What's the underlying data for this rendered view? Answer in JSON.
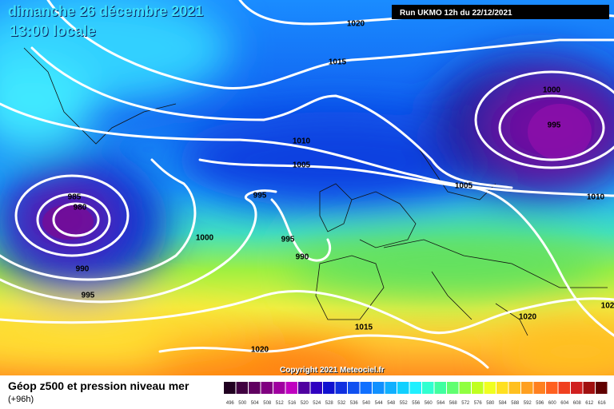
{
  "header": {
    "date": "dimanche 26 décembre 2021",
    "time": "13:00 locale",
    "run": "Run UKMO 12h du 22/12/2021"
  },
  "isobar_labels": [
    "1020",
    "1015",
    "1010",
    "1005",
    "1000",
    "995",
    "1005",
    "1010",
    "995",
    "985",
    "980",
    "1000",
    "995",
    "990",
    "990",
    "995",
    "1015",
    "1020",
    "1020",
    "102"
  ],
  "copyright": "Copyright 2021 Meteociel.fr",
  "footer": {
    "title": "Géop z500 et pression niveau mer",
    "subtitle": "(+96h)"
  },
  "legend": {
    "labels": [
      "496",
      "500",
      "504",
      "508",
      "512",
      "516",
      "520",
      "524",
      "528",
      "532",
      "536",
      "540",
      "544",
      "548",
      "552",
      "556",
      "560",
      "564",
      "568",
      "572",
      "576",
      "580",
      "584",
      "588",
      "592",
      "596",
      "600",
      "604",
      "608",
      "612",
      "616"
    ]
  }
}
